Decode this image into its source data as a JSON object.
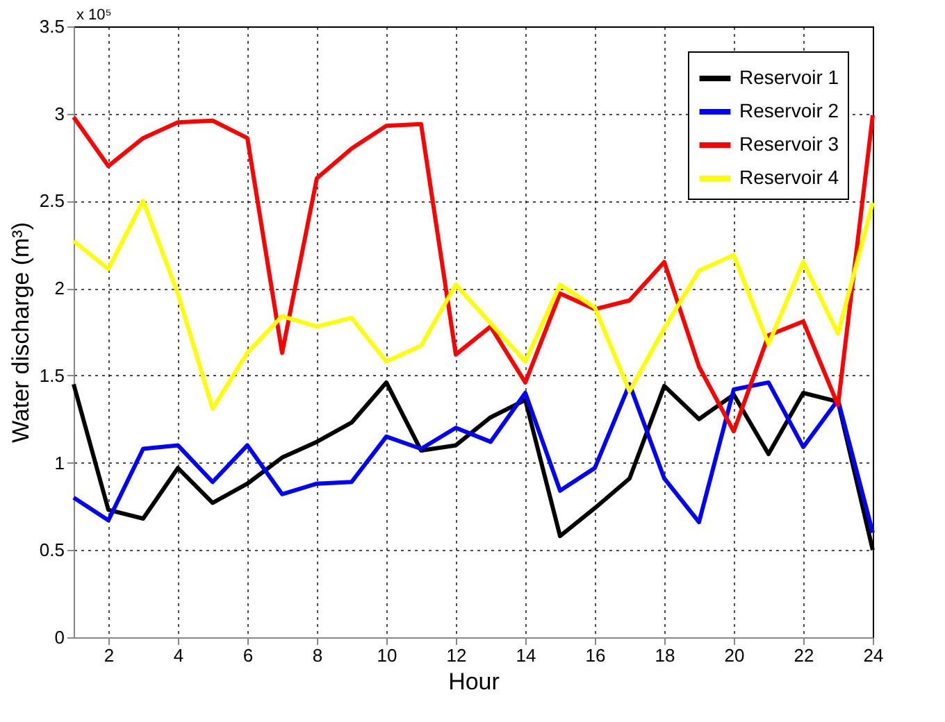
{
  "chart_data": {
    "type": "line",
    "xlabel": "Hour",
    "ylabel": "Water discharge (m³)",
    "annotations": [
      "x 10⁵"
    ],
    "x": [
      1,
      2,
      3,
      4,
      5,
      6,
      7,
      8,
      9,
      10,
      11,
      12,
      13,
      14,
      15,
      16,
      17,
      18,
      19,
      20,
      21,
      22,
      23,
      24
    ],
    "series": [
      {
        "name": "Reservoir 1",
        "color": "#000000",
        "values": [
          1.45,
          0.73,
          0.68,
          0.97,
          0.77,
          0.88,
          1.03,
          1.12,
          1.23,
          1.46,
          1.07,
          1.1,
          1.26,
          1.36,
          0.58,
          0.74,
          0.91,
          1.44,
          1.25,
          1.39,
          1.05,
          1.4,
          1.35,
          0.5
        ]
      },
      {
        "name": "Reservoir 2",
        "color": "#0000ff",
        "values": [
          0.8,
          0.67,
          1.08,
          1.1,
          0.89,
          1.1,
          0.82,
          0.88,
          0.89,
          1.15,
          1.08,
          1.2,
          1.12,
          1.4,
          0.84,
          0.97,
          1.45,
          0.91,
          0.66,
          1.42,
          1.46,
          1.09,
          1.36,
          0.6
        ]
      },
      {
        "name": "Reservoir 3",
        "color": "#ff0000",
        "values": [
          2.98,
          2.7,
          2.86,
          2.95,
          2.96,
          2.86,
          1.63,
          2.63,
          2.8,
          2.93,
          2.94,
          1.62,
          1.78,
          1.46,
          1.97,
          1.88,
          1.93,
          2.15,
          1.55,
          1.18,
          1.73,
          1.81,
          1.33,
          2.99
        ]
      },
      {
        "name": "Reservoir 4",
        "color": "#ffff00",
        "values": [
          2.27,
          2.11,
          2.5,
          1.97,
          1.31,
          1.63,
          1.84,
          1.78,
          1.83,
          1.58,
          1.67,
          2.02,
          1.8,
          1.58,
          2.02,
          1.89,
          1.41,
          1.77,
          2.1,
          2.19,
          1.68,
          2.15,
          1.74,
          2.49
        ]
      }
    ],
    "xlim": [
      1,
      24
    ],
    "xticks": [
      2,
      4,
      6,
      8,
      10,
      12,
      14,
      16,
      18,
      20,
      22,
      24
    ],
    "ylim": [
      0,
      3.5
    ],
    "yticks": [
      0,
      0.5,
      1,
      1.5,
      2,
      2.5,
      3,
      3.5
    ],
    "grid": true,
    "legend": "top right",
    "marker": "none",
    "line_style": "solid"
  }
}
